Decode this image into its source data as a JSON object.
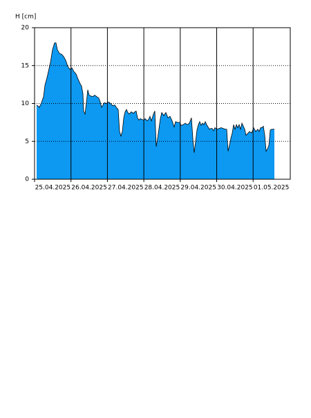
{
  "chart_data": {
    "type": "area",
    "y_label": "H [cm]",
    "color": "#0d99f2",
    "grid": true,
    "xlim": [
      0,
      7.02
    ],
    "xticks": [
      {
        "value": 0,
        "label": "25.04.2025"
      },
      {
        "value": 1,
        "label": "26.04.2025"
      },
      {
        "value": 2,
        "label": "27.04.2025"
      },
      {
        "value": 3,
        "label": "28.04.2025"
      },
      {
        "value": 4,
        "label": "29.04.2025"
      },
      {
        "value": 5,
        "label": "30.04.2025"
      },
      {
        "value": 6,
        "label": "01.05.2025"
      }
    ],
    "ylim": [
      0,
      20
    ],
    "yticks": [
      0,
      5,
      10,
      15,
      20
    ],
    "x": [
      0.057,
      0.133,
      0.19,
      0.247,
      0.285,
      0.342,
      0.38,
      0.436,
      0.493,
      0.55,
      0.588,
      0.626,
      0.683,
      0.74,
      0.797,
      0.854,
      0.911,
      0.968,
      1.025,
      1.082,
      1.139,
      1.195,
      1.252,
      1.29,
      1.328,
      1.347,
      1.385,
      1.423,
      1.461,
      1.499,
      1.537,
      1.594,
      1.651,
      1.708,
      1.765,
      1.803,
      1.841,
      1.879,
      1.917,
      1.973,
      2.03,
      2.087,
      2.144,
      2.201,
      2.258,
      2.296,
      2.334,
      2.372,
      2.41,
      2.448,
      2.486,
      2.524,
      2.562,
      2.6,
      2.657,
      2.713,
      2.751,
      2.789,
      2.827,
      2.865,
      2.903,
      2.941,
      2.998,
      3.036,
      3.093,
      3.131,
      3.169,
      3.207,
      3.264,
      3.302,
      3.34,
      3.378,
      3.416,
      3.454,
      3.491,
      3.548,
      3.605,
      3.662,
      3.719,
      3.776,
      3.833,
      3.871,
      3.928,
      3.985,
      4.023,
      4.08,
      4.137,
      4.194,
      4.25,
      4.307,
      4.345,
      4.383,
      4.421,
      4.459,
      4.497,
      4.535,
      4.573,
      4.611,
      4.649,
      4.687,
      4.725,
      4.763,
      4.801,
      4.839,
      4.877,
      4.915,
      4.953,
      5.009,
      5.066,
      5.123,
      5.18,
      5.237,
      5.275,
      5.313,
      5.351,
      5.389,
      5.427,
      5.465,
      5.503,
      5.541,
      5.579,
      5.617,
      5.655,
      5.693,
      5.731,
      5.769,
      5.806,
      5.844,
      5.901,
      5.958,
      6.015,
      6.072,
      6.129,
      6.167,
      6.205,
      6.243,
      6.281,
      6.319,
      6.357,
      6.395,
      6.433,
      6.471,
      6.509,
      6.546,
      6.584
    ],
    "values": [
      9.8,
      9.5,
      10.1,
      10.9,
      12.4,
      13.4,
      14.2,
      15.4,
      17.1,
      18.0,
      18.0,
      17.1,
      16.6,
      16.5,
      16.2,
      15.7,
      14.9,
      14.5,
      14.7,
      14.2,
      13.9,
      13.2,
      12.6,
      12.3,
      11.3,
      9.0,
      8.6,
      10.1,
      11.8,
      11.1,
      11.0,
      10.9,
      11.1,
      10.9,
      10.7,
      10.2,
      9.5,
      9.8,
      10.1,
      10.0,
      10.2,
      10.0,
      9.7,
      9.8,
      9.4,
      9.2,
      6.3,
      5.7,
      6.3,
      8.1,
      8.9,
      9.2,
      8.8,
      8.6,
      8.9,
      8.7,
      8.9,
      9.0,
      8.1,
      7.8,
      8.0,
      7.9,
      7.8,
      8.0,
      7.7,
      7.9,
      8.3,
      7.7,
      8.6,
      9.0,
      4.3,
      5.4,
      6.7,
      8.0,
      8.8,
      8.4,
      8.8,
      8.1,
      8.3,
      7.7,
      6.9,
      7.6,
      7.5,
      7.5,
      7.1,
      7.2,
      7.4,
      7.2,
      7.4,
      8.1,
      5.4,
      3.5,
      5.0,
      6.5,
      7.2,
      7.6,
      7.1,
      7.4,
      7.2,
      7.6,
      7.2,
      6.9,
      6.6,
      6.7,
      6.7,
      6.4,
      6.8,
      6.6,
      6.7,
      6.8,
      6.7,
      6.6,
      6.6,
      3.7,
      4.5,
      5.4,
      6.1,
      7.2,
      6.6,
      7.2,
      6.8,
      7.2,
      6.6,
      7.4,
      7.0,
      6.6,
      5.8,
      6.0,
      6.3,
      6.1,
      6.8,
      6.3,
      6.6,
      6.3,
      6.8,
      6.8,
      7.0,
      5.8,
      3.7,
      4.0,
      4.5,
      6.5,
      6.6,
      6.6,
      6.6
    ]
  }
}
